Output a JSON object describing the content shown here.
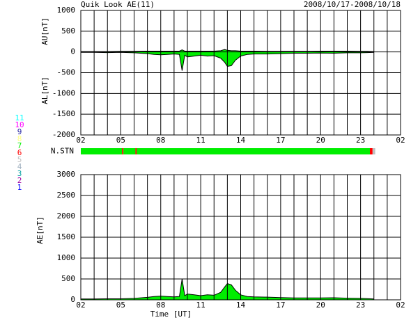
{
  "chart_data": [
    {
      "type": "band",
      "title": "Quik Look AE(11)",
      "subtitle": "2008/10/17-2008/10/18",
      "x": [
        2,
        3,
        4,
        5,
        6,
        7,
        7.5,
        8,
        8.5,
        9,
        9.4,
        9.6,
        9.8,
        10,
        10.5,
        11,
        11.5,
        12,
        12.5,
        12.8,
        13,
        13.3,
        13.6,
        14,
        14.5,
        15,
        16,
        17,
        18,
        19,
        20,
        21,
        22,
        23,
        23.5,
        24
      ],
      "series": [
        {
          "label": "AU[nT]",
          "color": "#00ee00",
          "values": [
            10,
            10,
            10,
            15,
            15,
            20,
            20,
            20,
            20,
            20,
            20,
            50,
            20,
            20,
            20,
            20,
            20,
            20,
            30,
            60,
            40,
            30,
            30,
            20,
            20,
            20,
            15,
            15,
            15,
            15,
            20,
            20,
            20,
            15,
            15,
            10
          ]
        },
        {
          "label": "AL[nT]",
          "color": "#00ee00",
          "values": [
            -10,
            -10,
            -15,
            -10,
            -20,
            -40,
            -60,
            -70,
            -60,
            -50,
            -60,
            -450,
            -80,
            -120,
            -100,
            -80,
            -100,
            -90,
            -150,
            -250,
            -350,
            -330,
            -200,
            -100,
            -60,
            -50,
            -50,
            -40,
            -30,
            -30,
            -25,
            -30,
            -20,
            -20,
            -15,
            -10
          ]
        }
      ],
      "xlim": [
        2,
        26
      ],
      "xticks": [
        {
          "value": 2,
          "label": "02"
        },
        {
          "value": 5,
          "label": "05"
        },
        {
          "value": 8,
          "label": "08"
        },
        11,
        14,
        17,
        20,
        23,
        {
          "value": 26,
          "label": "02"
        }
      ],
      "xgrid": [
        2,
        3,
        4,
        5,
        6,
        7,
        8,
        9,
        10,
        11,
        12,
        13,
        14,
        15,
        16,
        17,
        18,
        19,
        20,
        21,
        22,
        23,
        24,
        25,
        26
      ],
      "ylim": [
        -2000,
        1000
      ],
      "yticks": [
        -2000,
        -1500,
        -1000,
        -500,
        0,
        500,
        1000
      ]
    },
    {
      "type": "strip",
      "label": "N.STN",
      "xlim": [
        2,
        26
      ],
      "edges": [
        2,
        5.1,
        5.2,
        6.1,
        6.2,
        23.7,
        23.9,
        24.1
      ],
      "values": [
        7,
        6,
        7,
        6,
        7,
        6,
        5
      ],
      "legend": [
        {
          "label": "11",
          "color": "#00ffff"
        },
        {
          "label": "10",
          "color": "#ff00ff"
        },
        {
          "label": "9",
          "color": "#2020a0"
        },
        {
          "label": "8",
          "color": "#ffff80"
        },
        {
          "label": "7",
          "color": "#00ee00"
        },
        {
          "label": "6",
          "color": "#ff0000"
        },
        {
          "label": "5",
          "color": "#c0c0c0"
        },
        {
          "label": "4",
          "color": "#a0b0c0"
        },
        {
          "label": "3",
          "color": "#00a0a0"
        },
        {
          "label": "2",
          "color": "#a000a0"
        },
        {
          "label": "1",
          "color": "#0000ff"
        }
      ]
    },
    {
      "type": "area",
      "y_label": "AE[nT]",
      "x_label": "Time [UT]",
      "color": "#00ee00",
      "x": [
        2,
        3,
        4,
        5,
        6,
        7,
        7.5,
        8,
        8.5,
        9,
        9.4,
        9.6,
        9.8,
        10,
        10.5,
        11,
        11.5,
        12,
        12.5,
        12.8,
        13,
        13.3,
        13.6,
        14,
        14.5,
        15,
        16,
        17,
        18,
        19,
        20,
        21,
        22,
        23,
        23.5,
        24
      ],
      "values": [
        20,
        20,
        25,
        25,
        35,
        60,
        80,
        90,
        80,
        70,
        80,
        500,
        100,
        140,
        120,
        100,
        120,
        110,
        180,
        310,
        390,
        360,
        230,
        120,
        80,
        70,
        65,
        55,
        45,
        45,
        45,
        50,
        40,
        35,
        30,
        20
      ],
      "xlim": [
        2,
        26
      ],
      "xticks": [
        {
          "value": 2,
          "label": "02"
        },
        {
          "value": 5,
          "label": "05"
        },
        {
          "value": 8,
          "label": "08"
        },
        11,
        14,
        17,
        20,
        23,
        {
          "value": 26,
          "label": "02"
        }
      ],
      "xgrid": [
        2,
        3,
        4,
        5,
        6,
        7,
        8,
        9,
        10,
        11,
        12,
        13,
        14,
        15,
        16,
        17,
        18,
        19,
        20,
        21,
        22,
        23,
        24,
        25,
        26
      ],
      "ylim": [
        0,
        3000
      ],
      "yticks": [
        0,
        500,
        1000,
        1500,
        2000,
        2500,
        3000
      ]
    }
  ]
}
